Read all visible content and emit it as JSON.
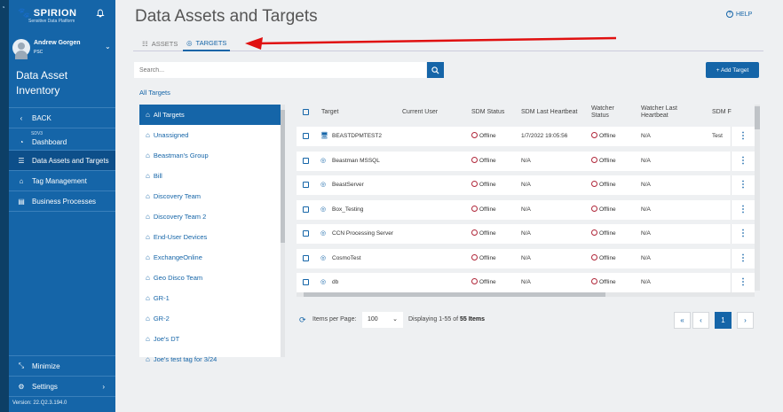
{
  "brand": {
    "name": "SPIRION",
    "tagline": "Sensitive Data Platform"
  },
  "user": {
    "name": "Andrew Gorgen",
    "org": "PSC"
  },
  "sidebar": {
    "section_title": "Data Asset Inventory",
    "items": [
      {
        "label": "BACK",
        "icon": "chevron-left-icon"
      },
      {
        "sub": "SDV3",
        "label": "Dashboard",
        "icon": "dashboard-icon"
      },
      {
        "label": "Data Assets and Targets",
        "icon": "database-icon"
      },
      {
        "label": "Tag Management",
        "icon": "tag-icon"
      },
      {
        "label": "Business Processes",
        "icon": "briefcase-icon"
      }
    ],
    "bottom": [
      {
        "label": "Minimize",
        "icon": "minimize-icon"
      },
      {
        "label": "Settings",
        "icon": "gear-icon"
      }
    ],
    "version": "Version: 22.Q2.3.194.0"
  },
  "header": {
    "title": "Data Assets and Targets",
    "help": "HELP"
  },
  "tabs": [
    {
      "label": "ASSETS"
    },
    {
      "label": "TARGETS"
    }
  ],
  "search": {
    "placeholder": "Search..."
  },
  "add_target": "+ Add Target",
  "breadcrumb": "All Targets",
  "tags": [
    "All Targets",
    "Unassigned",
    "Beastman's Group",
    "Bill",
    "Discovery Team",
    "Discovery Team 2",
    "End-User Devices",
    "ExchangeOnline",
    "Geo Disco Team",
    "GR-1",
    "GR-2",
    "Joe's DT",
    "Joe's test tag for 3/24"
  ],
  "table": {
    "columns": [
      "Target",
      "Current User",
      "SDM Status",
      "SDM Last Heartbeat",
      "Watcher Status",
      "Watcher Last Heartbeat",
      "SDM F"
    ],
    "rows": [
      {
        "target": "BEASTDPMTEST2",
        "user": "",
        "sdm_status": "Offline",
        "heartbeat": "1/7/2022 19:05:56",
        "watcher_status": "Offline",
        "watcher_heartbeat": "N/A",
        "sdm_f": "Test"
      },
      {
        "target": "Beastman MSSQL",
        "user": "",
        "sdm_status": "Offline",
        "heartbeat": "N/A",
        "watcher_status": "Offline",
        "watcher_heartbeat": "N/A",
        "sdm_f": ""
      },
      {
        "target": "BeastServer",
        "user": "",
        "sdm_status": "Offline",
        "heartbeat": "N/A",
        "watcher_status": "Offline",
        "watcher_heartbeat": "N/A",
        "sdm_f": ""
      },
      {
        "target": "Box_Testing",
        "user": "",
        "sdm_status": "Offline",
        "heartbeat": "N/A",
        "watcher_status": "Offline",
        "watcher_heartbeat": "N/A",
        "sdm_f": ""
      },
      {
        "target": "CCN Processing Server",
        "user": "",
        "sdm_status": "Offline",
        "heartbeat": "N/A",
        "watcher_status": "Offline",
        "watcher_heartbeat": "N/A",
        "sdm_f": ""
      },
      {
        "target": "CosmoTest",
        "user": "",
        "sdm_status": "Offline",
        "heartbeat": "N/A",
        "watcher_status": "Offline",
        "watcher_heartbeat": "N/A",
        "sdm_f": ""
      },
      {
        "target": "db",
        "user": "",
        "sdm_status": "Offline",
        "heartbeat": "N/A",
        "watcher_status": "Offline",
        "watcher_heartbeat": "N/A",
        "sdm_f": ""
      }
    ]
  },
  "pagination": {
    "items_per_page_label": "Items per Page:",
    "items_per_page": "100",
    "display_prefix": "Displaying 1-55 of ",
    "display_total": "55 Items",
    "first": "«",
    "prev": "‹",
    "current": "1",
    "next": "›"
  },
  "colors": {
    "primary": "#1565a8",
    "sidebar": "#1565a8",
    "offline": "#b0273a",
    "annotation_arrow": "#e01010"
  }
}
